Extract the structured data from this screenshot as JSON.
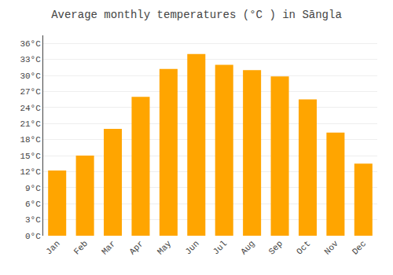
{
  "chart_data": {
    "type": "bar",
    "title": "Average monthly temperatures (°C ) in Sāngla",
    "categories": [
      "Jan",
      "Feb",
      "Mar",
      "Apr",
      "May",
      "Jun",
      "Jul",
      "Aug",
      "Sep",
      "Oct",
      "Nov",
      "Dec"
    ],
    "values": [
      12.2,
      15.0,
      20.0,
      26.0,
      31.2,
      34.0,
      32.0,
      31.0,
      29.8,
      25.5,
      19.3,
      13.5
    ],
    "color": "#FFA500",
    "ylim": [
      0,
      37.5
    ],
    "yticks": [
      {
        "value": 0,
        "label": "0°C"
      },
      {
        "value": 3,
        "label": "3°C"
      },
      {
        "value": 6,
        "label": "6°C"
      },
      {
        "value": 9,
        "label": "9°C"
      },
      {
        "value": 12,
        "label": "12°C"
      },
      {
        "value": 15,
        "label": "15°C"
      },
      {
        "value": 18,
        "label": "18°C"
      },
      {
        "value": 21,
        "label": "21°C"
      },
      {
        "value": 24,
        "label": "24°C"
      },
      {
        "value": 27,
        "label": "27°C"
      },
      {
        "value": 30,
        "label": "30°C"
      },
      {
        "value": 33,
        "label": "33°C"
      },
      {
        "value": 36,
        "label": "36°C"
      }
    ],
    "grid": true
  }
}
